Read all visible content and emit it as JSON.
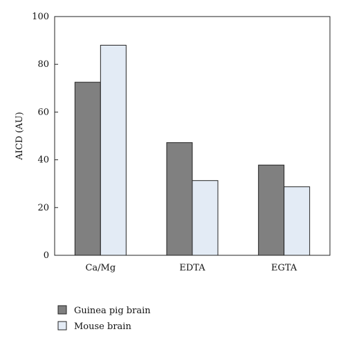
{
  "chart_data": {
    "type": "bar",
    "title": "",
    "xlabel": "",
    "ylabel": "AICD (AU)",
    "categories": [
      "Ca/Mg",
      "EDTA",
      "EGTA"
    ],
    "series": [
      {
        "name": "Guinea pig brain",
        "values": [
          72.5,
          47.2,
          37.8
        ],
        "color": "#808080"
      },
      {
        "name": "Mouse brain",
        "values": [
          88.0,
          31.3,
          28.7
        ],
        "color": "#e3ebf5"
      }
    ],
    "ylim": [
      0,
      100
    ],
    "yticks": [
      0,
      20,
      40,
      60,
      80,
      100
    ],
    "grid": false,
    "legend_position": "bottom-left",
    "bar_edge_color": "#222222"
  }
}
